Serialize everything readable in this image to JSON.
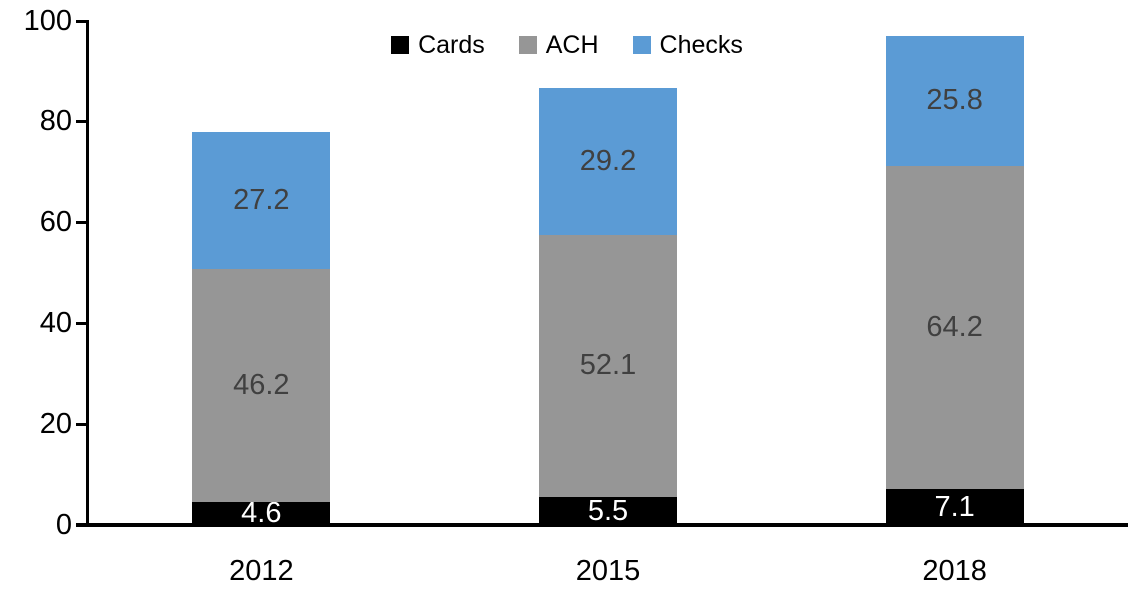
{
  "chart_data": {
    "type": "bar",
    "stacked": true,
    "title": "",
    "xlabel": "",
    "ylabel": "",
    "categories": [
      "2012",
      "2015",
      "2018"
    ],
    "series": [
      {
        "name": "Cards",
        "color": "#000000",
        "label_color": "#ffffff",
        "values": [
          4.6,
          5.5,
          7.1
        ]
      },
      {
        "name": "ACH",
        "color": "#969696",
        "label_color": "#404040",
        "values": [
          46.2,
          52.1,
          64.2
        ]
      },
      {
        "name": "Checks",
        "color": "#5B9BD5",
        "label_color": "#404040",
        "values": [
          27.2,
          29.2,
          25.8
        ]
      }
    ],
    "totals": [
      78.0,
      86.8,
      97.1
    ],
    "yticks": [
      0,
      20,
      40,
      60,
      80,
      100
    ],
    "ylim": [
      0,
      100
    ],
    "legend_position": "top",
    "legend_labels": [
      "Cards",
      "ACH",
      "Checks"
    ],
    "grid": false,
    "axis_color": "#000000"
  }
}
